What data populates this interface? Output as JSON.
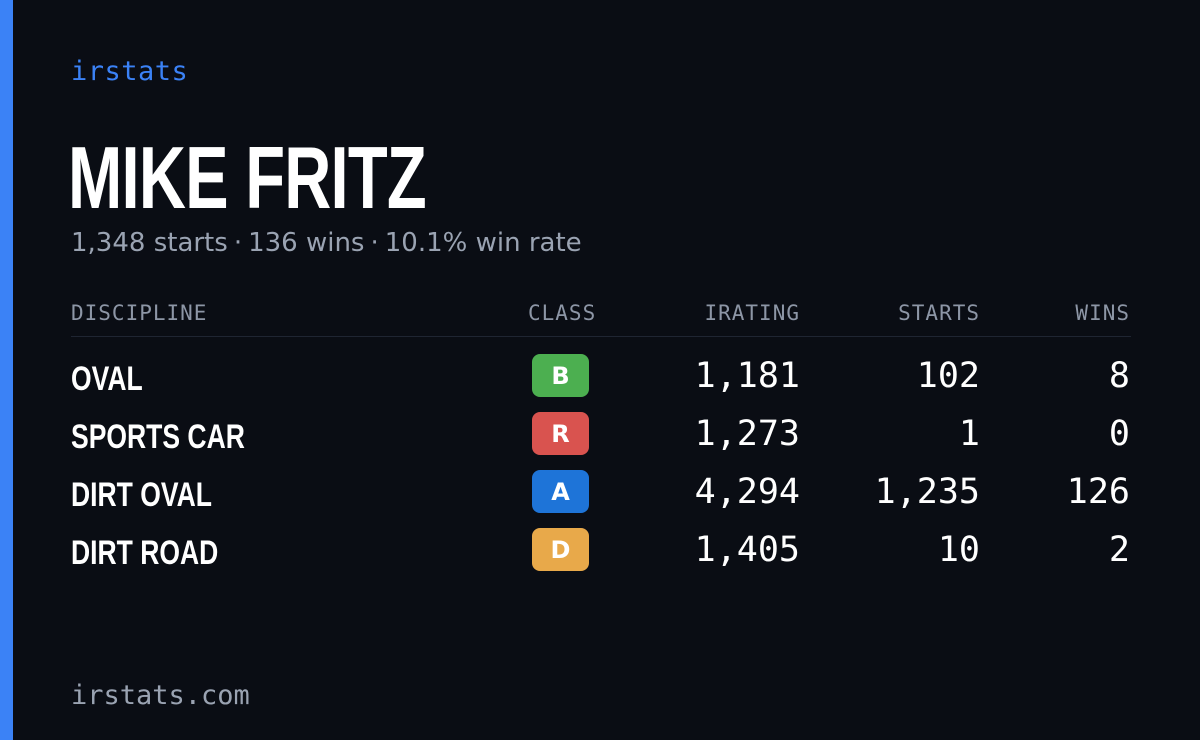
{
  "brand": "irstats",
  "driver": {
    "name": "MIKE FRITZ",
    "summary": {
      "starts": "1,348 starts",
      "wins": "136 wins",
      "win_rate": "10.1% win rate",
      "separator": "·"
    }
  },
  "table": {
    "headers": {
      "discipline": "DISCIPLINE",
      "class": "CLASS",
      "irating": "IRATING",
      "starts": "STARTS",
      "wins": "WINS"
    },
    "rows": [
      {
        "discipline": "OVAL",
        "class": "B",
        "class_color": "#4caf50",
        "irating": "1,181",
        "starts": "102",
        "wins": "8"
      },
      {
        "discipline": "SPORTS CAR",
        "class": "R",
        "class_color": "#d9534f",
        "irating": "1,273",
        "starts": "1",
        "wins": "0"
      },
      {
        "discipline": "DIRT OVAL",
        "class": "A",
        "class_color": "#1e74d8",
        "irating": "4,294",
        "starts": "1,235",
        "wins": "126"
      },
      {
        "discipline": "DIRT ROAD",
        "class": "D",
        "class_color": "#e8a94a",
        "irating": "1,405",
        "starts": "10",
        "wins": "2"
      }
    ]
  },
  "footer": "irstats.com",
  "colors": {
    "accent": "#3b82f6",
    "background": "#0a0d14"
  }
}
